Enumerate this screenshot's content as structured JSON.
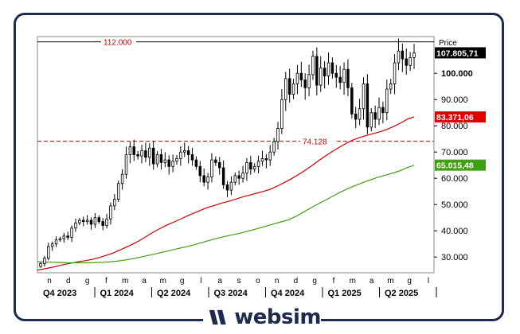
{
  "brand": {
    "name": "websim",
    "color": "#1d2b4f"
  },
  "chart_data": {
    "type": "candlestick",
    "y_axis_title": "Price",
    "ylim": [
      24000,
      114000
    ],
    "y_ticks": [
      30000,
      40000,
      50000,
      60000,
      70000,
      80000,
      90000,
      100000
    ],
    "y_tick_labels": [
      "30.000",
      "40.000",
      "50.000",
      "60.000",
      "70.000",
      "80.000",
      "90.000",
      "100.000"
    ],
    "month_labels": [
      "n",
      "d",
      "g",
      "f",
      "m",
      "a",
      "m",
      "g",
      "l",
      "a",
      "s",
      "o",
      "n",
      "d",
      "g",
      "f",
      "m",
      "a",
      "m",
      "g",
      "l"
    ],
    "quarter_labels": [
      "Q4 2023",
      "Q1 2024",
      "Q2 2024",
      "Q3 2024",
      "Q4 2024",
      "Q1 2025",
      "Q2 2025"
    ],
    "levels": [
      {
        "value": 112000,
        "label": "112.000",
        "style": "solid",
        "color": "#000000"
      },
      {
        "value": 74128,
        "label": "74.128",
        "style": "dashed",
        "color": "#cc0000"
      }
    ],
    "price_tags": [
      {
        "value": 107805.71,
        "label": "107.805,71",
        "color": "#000000",
        "text_color": "#ffffff"
      },
      {
        "value": 83371.06,
        "label": "83.371,06",
        "color": "#e00000",
        "text_color": "#ffffff"
      },
      {
        "value": 65015.48,
        "label": "65.015,48",
        "color": "#3fa010",
        "text_color": "#ffffff"
      }
    ],
    "closes": [
      27500,
      29500,
      34000,
      35000,
      36500,
      37000,
      38000,
      37500,
      41000,
      43000,
      44000,
      43500,
      44000,
      42500,
      45000,
      43500,
      42000,
      44500,
      49500,
      52000,
      58000,
      61500,
      69000,
      72000,
      69000,
      68500,
      70500,
      68000,
      71500,
      65500,
      69000,
      66000,
      67000,
      64500,
      66500,
      67500,
      70000,
      70500,
      69000,
      67000,
      64500,
      61000,
      58500,
      60500,
      67000,
      66000,
      64000,
      57500,
      55500,
      58500,
      61000,
      60000,
      62000,
      66000,
      63500,
      64500,
      66500,
      67500,
      67000,
      70000,
      74000,
      79000,
      90000,
      98000,
      92000,
      96000,
      100000,
      97500,
      94500,
      99500,
      106500,
      95500,
      102000,
      99000,
      104000,
      100000,
      98500,
      96500,
      101500,
      94500,
      84500,
      82500,
      86500,
      96000,
      79500,
      85000,
      82500,
      87000,
      85000,
      94000,
      96000,
      104000,
      108500,
      105500,
      103000,
      106000,
      107800
    ],
    "series": [
      {
        "name": "",
        "color": "#cc0000",
        "values": [
          25000,
          25500,
          26000,
          26600,
          27200,
          27700,
          28200,
          28600,
          29100,
          29800,
          30600,
          31500,
          32600,
          33800,
          35000,
          36400,
          38000,
          39600,
          41000,
          42300,
          43400,
          44600,
          45800,
          46900,
          48000,
          49000,
          49800,
          50600,
          51300,
          52100,
          52900,
          53600,
          54300,
          55000,
          55800,
          57000,
          58300,
          59700,
          61200,
          62900,
          64700,
          66600,
          68400,
          70100,
          71700,
          73200,
          74500,
          75500,
          76300,
          77000,
          77700,
          78600,
          79700,
          81000,
          82500,
          83400
        ]
      },
      {
        "name": "",
        "color": "#3fa010",
        "values": [
          28200,
          28100,
          28000,
          27900,
          27800,
          27800,
          27800,
          27800,
          27900,
          28000,
          28200,
          28500,
          28900,
          29400,
          30000,
          30600,
          31200,
          31900,
          32500,
          33200,
          33800,
          34500,
          35300,
          36100,
          36900,
          37600,
          38200,
          38800,
          39500,
          40200,
          41000,
          41800,
          42600,
          43400,
          44200,
          45500,
          47100,
          48700,
          50200,
          51700,
          53200,
          54700,
          56000,
          57200,
          58300,
          59300,
          60300,
          61100,
          61900,
          62800,
          64000,
          65000
        ]
      }
    ]
  }
}
